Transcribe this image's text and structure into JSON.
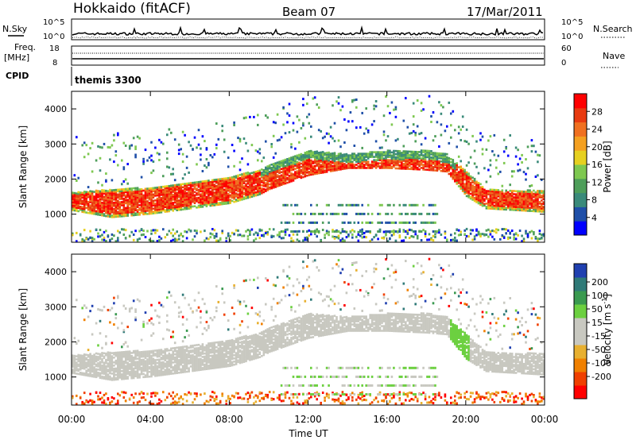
{
  "header": {
    "station": "Hokkaido (fitACF)",
    "beam": "Beam 07",
    "date": "17/Mar/2011"
  },
  "strip": {
    "nsky_label": "N.Sky",
    "nsearch_label": "N.Search",
    "noise_ticks": [
      "10^5",
      "10^0"
    ],
    "freq_label_1": "Freq.",
    "freq_label_2": "[MHz]",
    "freq_ticks": [
      "18",
      "8"
    ],
    "nave_label": "Nave",
    "nave_ticks": [
      "60",
      "0"
    ],
    "cpid_label": "CPID",
    "cpid_value": "themis 3300"
  },
  "colors": {
    "power_scale": [
      "#0000ff",
      "#1f4fa8",
      "#3a8a7a",
      "#4e9e5a",
      "#7ec850",
      "#e6d020",
      "#f4a020",
      "#f07020",
      "#e83a10",
      "#ff0000"
    ],
    "velocity_scale": [
      "#ff0000",
      "#f04000",
      "#f08000",
      "#e8b030",
      "#c8c8c0",
      "#c8c8c0",
      "#6cd040",
      "#3a9a50",
      "#2f7a78",
      "#2040b0"
    ],
    "ground_scatter": "#c8c8c0"
  },
  "chart_data": [
    {
      "type": "heatmap",
      "panel": "power",
      "ylabel": "Slant Range [km]",
      "yticks": [
        "1000",
        "2000",
        "3000",
        "4000"
      ],
      "ylim": [
        200,
        4500
      ],
      "xlim": [
        "00:00",
        "24:00"
      ],
      "colorbar_label": "Power [dB]",
      "colorbar_ticks": [
        "28",
        "24",
        "20",
        "16",
        "12",
        "8",
        "4"
      ],
      "band_lower_km": [
        [
          0,
          1100
        ],
        [
          2,
          900
        ],
        [
          4,
          1000
        ],
        [
          6,
          1150
        ],
        [
          8,
          1300
        ],
        [
          9.5,
          1550
        ],
        [
          10,
          1700
        ],
        [
          12,
          2100
        ],
        [
          14,
          2300
        ],
        [
          16,
          2300
        ],
        [
          18,
          2250
        ],
        [
          19,
          2200
        ],
        [
          20,
          1500
        ],
        [
          21,
          1150
        ],
        [
          24,
          1050
        ]
      ],
      "band_upper_km": [
        [
          0,
          1600
        ],
        [
          2,
          1700
        ],
        [
          4,
          1750
        ],
        [
          6,
          1900
        ],
        [
          8,
          2050
        ],
        [
          9.5,
          2250
        ],
        [
          10,
          2400
        ],
        [
          12,
          2800
        ],
        [
          14,
          2700
        ],
        [
          16,
          2800
        ],
        [
          18,
          2800
        ],
        [
          19,
          2700
        ],
        [
          20,
          2200
        ],
        [
          21,
          1700
        ],
        [
          24,
          1650
        ]
      ]
    },
    {
      "type": "heatmap",
      "panel": "velocity",
      "ylabel": "Slant Range [km]",
      "yticks": [
        "1000",
        "2000",
        "3000",
        "4000"
      ],
      "ylim": [
        200,
        4500
      ],
      "xticks": [
        "00:00",
        "04:00",
        "08:00",
        "12:00",
        "16:00",
        "20:00",
        "00:00"
      ],
      "xlabel": "Time UT",
      "colorbar_label": "Velocity [m s^-1]",
      "colorbar_ticks": [
        "200",
        "100",
        "50",
        "15",
        "-15",
        "-50",
        "-100",
        "-200"
      ]
    }
  ]
}
